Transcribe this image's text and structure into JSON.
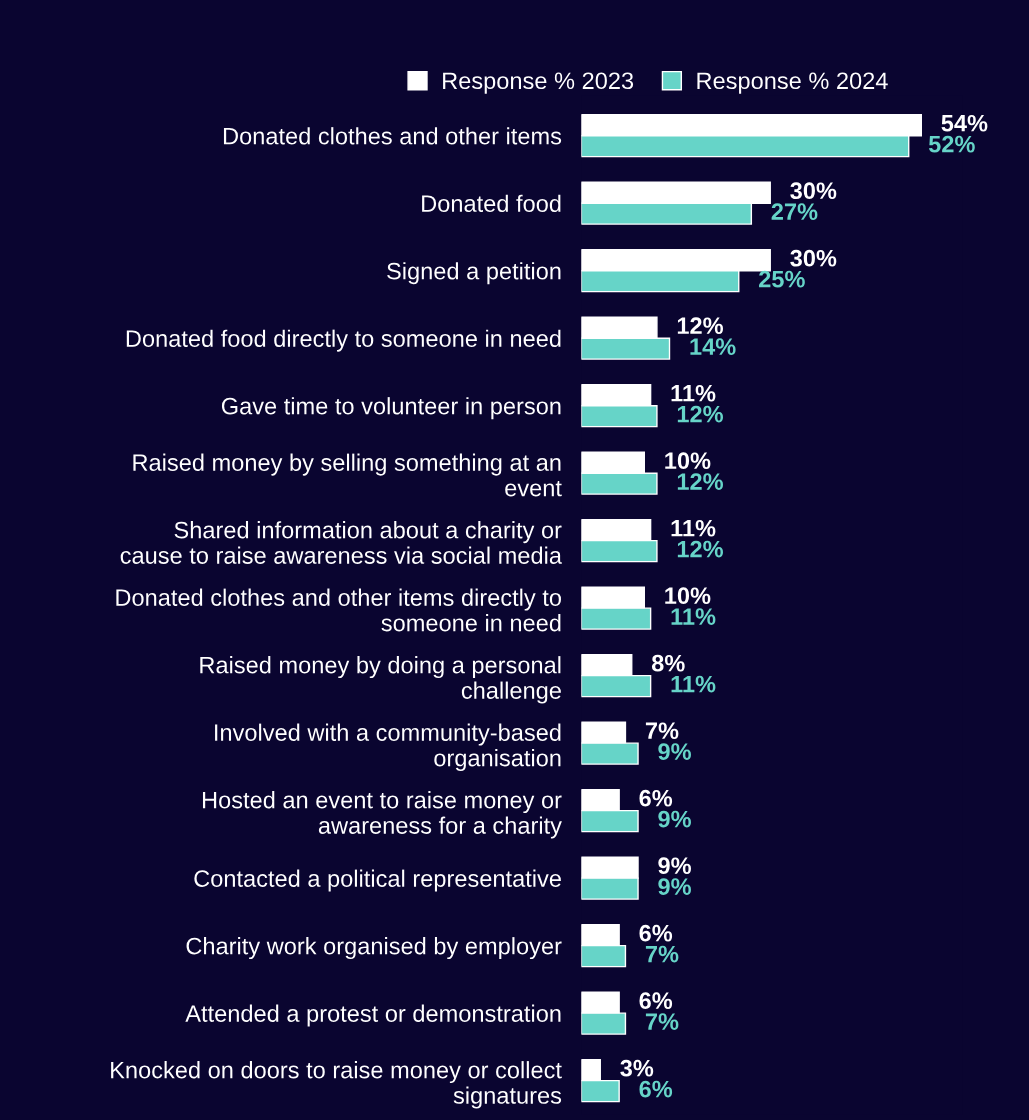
{
  "chart_data": {
    "type": "bar",
    "orientation": "horizontal",
    "categories": [
      "Donated clothes and other items",
      "Donated food",
      "Signed a petition",
      "Donated food directly to someone in need",
      "Gave time to volunteer in person",
      "Raised money by selling something at an\nevent",
      "Shared information about a charity or\ncause to raise awareness via social media",
      "Donated clothes and other items directly to\nsomeone in need",
      "Raised money by doing a personal\nchallenge",
      "Involved with a community-based\norganisation",
      "Hosted an event to raise money or\nawareness for a charity",
      "Contacted a political representative",
      "Charity work organised by employer",
      "Attended a protest or demonstration",
      "Knocked on doors to raise money or collect\nsignatures"
    ],
    "series": [
      {
        "name": "Response % 2023",
        "color": "#ffffff",
        "values": [
          54,
          30,
          30,
          12,
          11,
          10,
          11,
          10,
          8,
          7,
          6,
          9,
          6,
          6,
          3
        ],
        "value_labels": [
          "54%",
          "30%",
          "30%",
          "12%",
          "11%",
          "10%",
          "11%",
          "10%",
          "8%",
          "7%",
          "6%",
          "9%",
          "6%",
          "6%",
          "3%"
        ]
      },
      {
        "name": "Response % 2024",
        "color": "#66d4c8",
        "values": [
          52,
          27,
          25,
          14,
          12,
          12,
          12,
          11,
          11,
          9,
          9,
          9,
          7,
          7,
          6
        ],
        "value_labels": [
          "52%",
          "27%",
          "25%",
          "14%",
          "12%",
          "12%",
          "12%",
          "11%",
          "11%",
          "9%",
          "9%",
          "9%",
          "7%",
          "7%",
          "6%"
        ]
      }
    ],
    "legend": "top",
    "grid": false
  }
}
